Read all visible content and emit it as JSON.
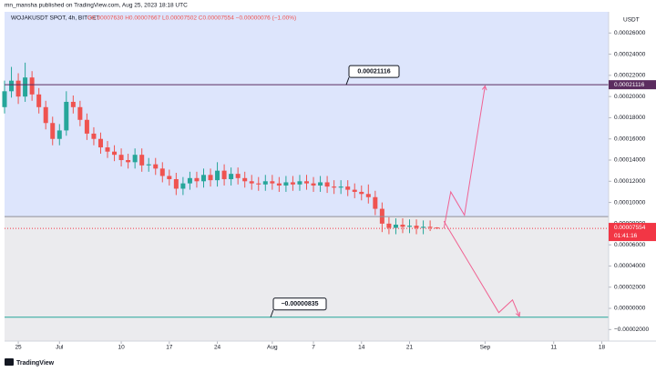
{
  "header": {
    "publisher": "mn_mansha published on TradingView.com, Aug 25, 2023 18:18 UTC",
    "brand": "TradingView"
  },
  "chart_data": {
    "type": "candlestick",
    "symbol": "WOJAKUSDT SPOT, 4h, BITGET",
    "ohlc": "O0.00007630 H0.00007667 L0.00007502 C0.00007554 −0.00000076 (−1.00%)",
    "currency": "USDT",
    "up_color": "#26a69a",
    "down_color": "#ef5350",
    "x": [
      "2023-06-23",
      "2023-06-24",
      "2023-06-25",
      "2023-06-26",
      "2023-06-27",
      "2023-06-28",
      "2023-06-29",
      "2023-06-30",
      "2023-07-01",
      "2023-07-02",
      "2023-07-03",
      "2023-07-04",
      "2023-07-05",
      "2023-07-06",
      "2023-07-07",
      "2023-07-08",
      "2023-07-09",
      "2023-07-10",
      "2023-07-11",
      "2023-07-12",
      "2023-07-13",
      "2023-07-14",
      "2023-07-15",
      "2023-07-16",
      "2023-07-17",
      "2023-07-18",
      "2023-07-19",
      "2023-07-20",
      "2023-07-21",
      "2023-07-22",
      "2023-07-23",
      "2023-07-24",
      "2023-07-25",
      "2023-07-26",
      "2023-07-27",
      "2023-07-28",
      "2023-07-29",
      "2023-07-30",
      "2023-07-31",
      "2023-08-01",
      "2023-08-02",
      "2023-08-03",
      "2023-08-04",
      "2023-08-05",
      "2023-08-06",
      "2023-08-07",
      "2023-08-08",
      "2023-08-09",
      "2023-08-10",
      "2023-08-11",
      "2023-08-12",
      "2023-08-13",
      "2023-08-14",
      "2023-08-15",
      "2023-08-16",
      "2023-08-17",
      "2023-08-18",
      "2023-08-19",
      "2023-08-20",
      "2023-08-21",
      "2023-08-22",
      "2023-08-23",
      "2023-08-24",
      "2023-08-25"
    ],
    "open": [
      0.00019,
      0.000205,
      0.000215,
      0.0002,
      0.000218,
      0.000202,
      0.00019,
      0.000175,
      0.00016,
      0.000168,
      0.000195,
      0.00019,
      0.000178,
      0.000165,
      0.00016,
      0.000152,
      0.000148,
      0.000145,
      0.00014,
      0.000138,
      0.000145,
      0.000135,
      0.000136,
      0.000132,
      0.000125,
      0.000122,
      0.000113,
      0.000118,
      0.000123,
      0.00012,
      0.000126,
      0.000121,
      0.00013,
      0.000122,
      0.000127,
      0.000123,
      0.00012,
      0.000118,
      0.000117,
      0.00012,
      0.000118,
      0.000116,
      0.000119,
      0.000117,
      0.00012,
      0.000118,
      0.000116,
      0.000119,
      0.000115,
      0.000114,
      0.000115,
      0.000112,
      0.00011,
      0.000108,
      0.000105,
      9.4e-05,
      8e-05,
      7.6e-05,
      7.9e-05,
      7.7e-05,
      7.8e-05,
      7.6e-05,
      7.7e-05,
      7.63e-05
    ],
    "high": [
      0.000215,
      0.000228,
      0.000222,
      0.000232,
      0.000224,
      0.000208,
      0.000196,
      0.000181,
      0.000174,
      0.000205,
      0.000201,
      0.000196,
      0.000184,
      0.000171,
      0.000166,
      0.000158,
      0.000154,
      0.000151,
      0.000146,
      0.000151,
      0.000151,
      0.000142,
      0.000142,
      0.000138,
      0.000131,
      0.000128,
      0.000124,
      0.000129,
      0.000129,
      0.000132,
      0.000132,
      0.000138,
      0.000136,
      0.000133,
      0.000133,
      0.000129,
      0.000126,
      0.000124,
      0.000126,
      0.000126,
      0.000124,
      0.000125,
      0.000125,
      0.000126,
      0.000126,
      0.000124,
      0.000125,
      0.000125,
      0.000121,
      0.000121,
      0.000121,
      0.000118,
      0.000116,
      0.000117,
      0.000111,
      0.0001,
      8.6e-05,
      8.5e-05,
      8.5e-05,
      8.4e-05,
      8.4e-05,
      8.3e-05,
      8.3e-05,
      7.667e-05
    ],
    "low": [
      0.000184,
      0.000199,
      0.000193,
      0.000195,
      0.000196,
      0.000184,
      0.000169,
      0.000154,
      0.000154,
      0.000163,
      0.000184,
      0.000172,
      0.000159,
      0.000154,
      0.000146,
      0.000142,
      0.000139,
      0.000134,
      0.000132,
      0.000132,
      0.000129,
      0.000129,
      0.000126,
      0.000119,
      0.000116,
      0.000107,
      0.000107,
      0.000112,
      0.000114,
      0.000114,
      0.000115,
      0.000115,
      0.000116,
      0.000116,
      0.000117,
      0.000114,
      0.000112,
      0.000111,
      0.000111,
      0.000112,
      0.00011,
      0.00011,
      0.000111,
      0.000111,
      0.000112,
      0.00011,
      0.00011,
      0.000109,
      0.000108,
      0.000108,
      0.000106,
      0.000104,
      0.000102,
      9.9e-05,
      8.8e-05,
      7.2e-05,
      7e-05,
      7e-05,
      7.1e-05,
      7.1e-05,
      7e-05,
      7e-05,
      7.3e-05,
      7.502e-05
    ],
    "close": [
      0.000205,
      0.000215,
      0.0002,
      0.000218,
      0.000202,
      0.00019,
      0.000175,
      0.00016,
      0.000168,
      0.000195,
      0.00019,
      0.000178,
      0.000165,
      0.00016,
      0.000152,
      0.000148,
      0.000145,
      0.00014,
      0.000138,
      0.000145,
      0.000135,
      0.000136,
      0.000132,
      0.000125,
      0.000122,
      0.000113,
      0.000118,
      0.000123,
      0.00012,
      0.000126,
      0.000121,
      0.00013,
      0.000122,
      0.000127,
      0.000123,
      0.00012,
      0.000118,
      0.000117,
      0.00012,
      0.000118,
      0.000116,
      0.000119,
      0.000117,
      0.00012,
      0.000118,
      0.000116,
      0.000119,
      0.000115,
      0.000114,
      0.000115,
      0.000112,
      0.00011,
      0.000108,
      0.000105,
      9.4e-05,
      8e-05,
      7.6e-05,
      7.9e-05,
      7.7e-05,
      7.8e-05,
      7.6e-05,
      7.7e-05,
      7.63e-05,
      7.554e-05
    ],
    "last_price": 7.554e-05,
    "countdown": "01:41:16",
    "last_price_color": "#f23645",
    "levels": [
      {
        "value": 0.00021116,
        "color": "#5b2c5f"
      },
      {
        "value": 8.67e-05,
        "color": "#8f9199"
      },
      {
        "value": -8.35e-06,
        "label": "−0.00000835",
        "color": "#26a69a"
      }
    ],
    "projection": {
      "color": "#f06292",
      "paths": [
        {
          "x": [
            "2023-08-26",
            "2023-08-27",
            "2023-08-29",
            "2023-09-01"
          ],
          "y": [
            7.55e-05,
            0.00011,
            8.8e-05,
            0.00021
          ]
        },
        {
          "x": [
            "2023-08-26",
            "2023-09-03",
            "2023-09-05",
            "2023-09-06"
          ],
          "y": [
            8.24e-05,
            -4e-06,
            8e-06,
            -7.5e-06
          ]
        }
      ]
    },
    "zone_colors": [
      "#dde5fc",
      "#ebebee"
    ],
    "xlim": [
      "2023-06-23",
      "2023-09-19"
    ],
    "xticks": [
      {
        "value": "2023-06-25",
        "label": "25"
      },
      {
        "value": "2023-07-01",
        "label": "Jul"
      },
      {
        "value": "2023-07-10",
        "label": "10"
      },
      {
        "value": "2023-07-17",
        "label": "17"
      },
      {
        "value": "2023-07-24",
        "label": "24"
      },
      {
        "value": "2023-08-01",
        "label": "Aug"
      },
      {
        "value": "2023-08-07",
        "label": "7"
      },
      {
        "value": "2023-08-14",
        "label": "14"
      },
      {
        "value": "2023-08-21",
        "label": "21"
      },
      {
        "value": "2023-09-01",
        "label": "Sep"
      },
      {
        "value": "2023-09-11",
        "label": "11"
      },
      {
        "value": "2023-09-18",
        "label": "18"
      }
    ],
    "ylim": [
      -3.09e-05,
      0.00028
    ],
    "yticks": [
      {
        "value": 0.00026,
        "label": "0.00026000"
      },
      {
        "value": 0.00024,
        "label": "0.00024000"
      },
      {
        "value": 0.00022,
        "label": "0.00022000"
      },
      {
        "value": 0.0002,
        "label": "0.00020000"
      },
      {
        "value": 0.00018,
        "label": "0.00018000"
      },
      {
        "value": 0.00016,
        "label": "0.00016000"
      },
      {
        "value": 0.00014,
        "label": "0.00014000"
      },
      {
        "value": 0.00012,
        "label": "0.00012000"
      },
      {
        "value": 0.0001,
        "label": "0.00010000"
      },
      {
        "value": 8e-05,
        "label": "0.00008000"
      },
      {
        "value": 6e-05,
        "label": "0.00006000"
      },
      {
        "value": 4e-05,
        "label": "0.00004000"
      },
      {
        "value": 2e-05,
        "label": "0.00002000"
      },
      {
        "value": 0,
        "label": "0.00000000"
      },
      {
        "value": -2e-05,
        "label": "−0.00002000"
      }
    ]
  }
}
